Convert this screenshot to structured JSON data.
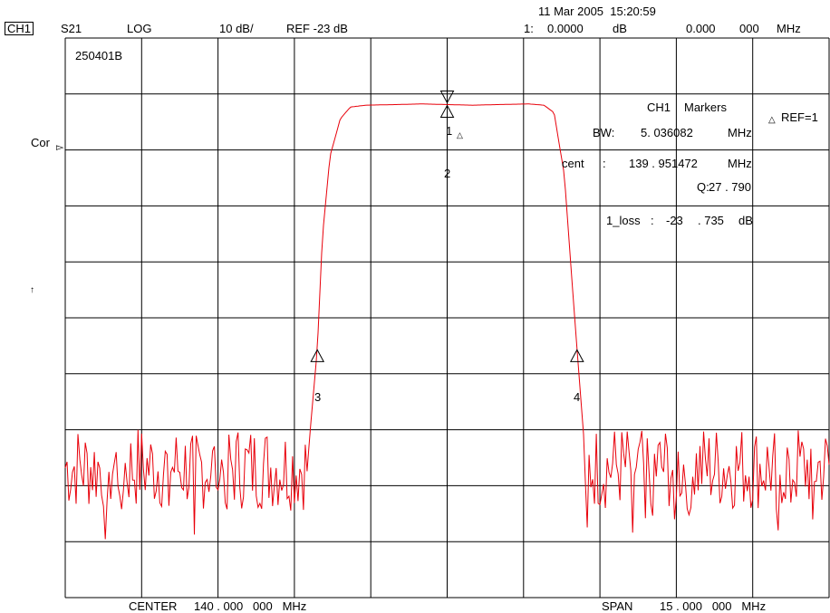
{
  "header": {
    "channel": "CH1",
    "parameter": "S21",
    "format": "LOG",
    "scale": "10 dB/",
    "reference": "REF -23 dB",
    "timestamp": "11 Mar 2005  15:20:59",
    "marker1_prefix": "1:",
    "marker1_value": "0.0000",
    "marker1_unit": "dB",
    "marker1_freq": "0.000",
    "marker1_freq2": "000",
    "marker1_freq_unit": "MHz"
  },
  "side_labels": {
    "cor": "Cor",
    "ref_arrow": "▻",
    "scale_arrow": "↑"
  },
  "trace_label": "250401B",
  "markers_panel": {
    "title_ch": "CH1",
    "title": "Markers",
    "ref_delta": "△",
    "ref_label": "REF=1",
    "bw_label": "BW:",
    "bw_value": "5. 036082",
    "bw_unit": "MHz",
    "cent_label": "cent",
    "cent_colon": ":",
    "cent_value": "139 . 951472",
    "cent_unit": "MHz",
    "q_label": "Q:",
    "q_value": "27 . 790",
    "loss_label": "1_loss",
    "loss_colon": ":",
    "loss_value": "-23",
    "loss_value2": ". 735",
    "loss_unit": "dB"
  },
  "markers": [
    "1",
    "2",
    "3",
    "4"
  ],
  "marker1_delta": "△",
  "footer": {
    "center_label": "CENTER",
    "center_value": "140 . 000   000   MHz",
    "span_label": "SPAN",
    "span_value": "15 . 000   000   MHz"
  },
  "colors": {
    "trace": "#e8000a",
    "grid": "#000000",
    "background": "#ffffff"
  },
  "chart_data": {
    "type": "line",
    "x_center_mhz": 140.0,
    "x_span_mhz": 15.0,
    "xlim": [
      132.5,
      147.5
    ],
    "ylim": [
      -103,
      -13
    ],
    "y_ref_db": -23,
    "y_scale_db_per_div": 10,
    "grid": true,
    "x_divisions": 10,
    "y_divisions": 10,
    "markers": [
      {
        "name": "1",
        "x": 140.0,
        "y": -23.7
      },
      {
        "name": "2",
        "x": 140.0,
        "y": -23.7
      },
      {
        "name": "3",
        "x": 137.45,
        "y": -63
      },
      {
        "name": "4",
        "x": 142.55,
        "y": -63
      }
    ],
    "series": [
      {
        "x": [
          132.5,
          134.0,
          135.5,
          137.0,
          137.3,
          137.45,
          137.55,
          137.7,
          137.9,
          138.1,
          138.4,
          139.0,
          139.5,
          140.0,
          140.5,
          141.0,
          141.6,
          141.9,
          142.1,
          142.3,
          142.45,
          142.55,
          142.7,
          143.0,
          144.5,
          146.0,
          147.5
        ],
        "y": [
          -82,
          -83,
          -84,
          -82,
          -77,
          -63,
          -45,
          -32,
          -26,
          -24.1,
          -23.8,
          -23.7,
          -23.6,
          -23.7,
          -23.8,
          -23.7,
          -23.6,
          -23.8,
          -25,
          -35,
          -52,
          -63,
          -79,
          -82,
          -84,
          -81,
          -82
        ]
      }
    ]
  }
}
